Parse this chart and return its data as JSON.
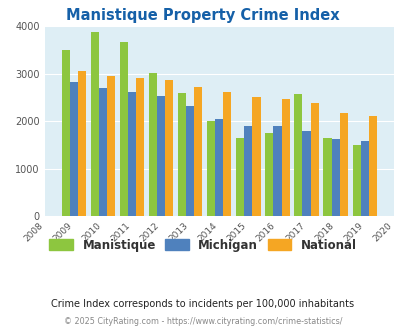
{
  "title": "Manistique Property Crime Index",
  "years": [
    2009,
    2010,
    2011,
    2012,
    2013,
    2014,
    2015,
    2016,
    2017,
    2018,
    2019
  ],
  "manistique": [
    3500,
    3880,
    3680,
    3020,
    2600,
    2000,
    1640,
    1750,
    2580,
    1640,
    1500
  ],
  "michigan": [
    2820,
    2700,
    2620,
    2530,
    2330,
    2040,
    1890,
    1910,
    1800,
    1630,
    1590
  ],
  "national": [
    3050,
    2950,
    2910,
    2870,
    2730,
    2610,
    2510,
    2460,
    2390,
    2180,
    2110
  ],
  "color_manistique": "#8dc63f",
  "color_michigan": "#4f81bd",
  "color_national": "#f5a623",
  "bg_color": "#deeef5",
  "xlim": [
    2008,
    2020
  ],
  "ylim": [
    0,
    4000
  ],
  "yticks": [
    0,
    1000,
    2000,
    3000,
    4000
  ],
  "title_color": "#1560a8",
  "title_fontsize": 10.5,
  "note_text": "Crime Index corresponds to incidents per 100,000 inhabitants",
  "footer_text": "© 2025 CityRating.com - https://www.cityrating.com/crime-statistics/",
  "note_color": "#222222",
  "footer_color": "#888888",
  "legend_labels": [
    "Manistique",
    "Michigan",
    "National"
  ]
}
